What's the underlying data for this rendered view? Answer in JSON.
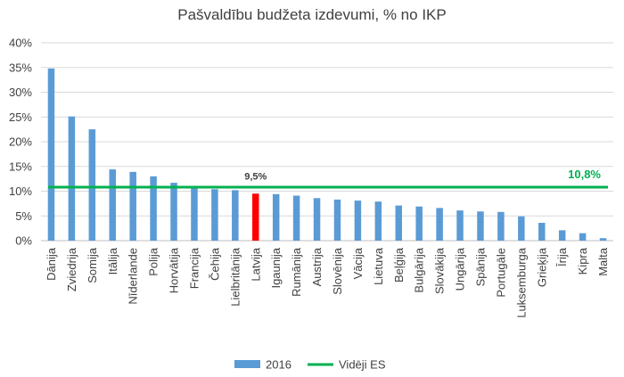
{
  "chart_data": {
    "type": "bar",
    "title": "Pašvaldību budžeta izdevumi, % no IKP",
    "categories": [
      "Dānija",
      "Zviedrija",
      "Somija",
      "Itālija",
      "Nīderlande",
      "Polija",
      "Horvātija",
      "Francija",
      "Čehija",
      "Lielbritānija",
      "Latvija",
      "Igaunija",
      "Rumānija",
      "Austrija",
      "Slovēnija",
      "Vācija",
      "Lietuva",
      "Beļģija",
      "Bulgārija",
      "Slovākija",
      "Ungārija",
      "Spānija",
      "Portugāle",
      "Luksemburga",
      "Grieķija",
      "Īrija",
      "Kipra",
      "Malta"
    ],
    "series": [
      {
        "name": "2016",
        "values": [
          34.8,
          25.1,
          22.5,
          14.4,
          13.9,
          13.0,
          11.7,
          11.0,
          10.4,
          10.2,
          9.5,
          9.4,
          9.1,
          8.6,
          8.3,
          8.1,
          7.9,
          7.1,
          6.9,
          6.6,
          6.1,
          5.9,
          5.8,
          4.9,
          3.6,
          2.1,
          1.5,
          0.5
        ],
        "color": "#5b9bd5",
        "highlight": {
          "category": "Latvija",
          "color": "#ff0000",
          "label": "9,5%"
        }
      }
    ],
    "average": {
      "name": "Vidēji ES",
      "value": 10.8,
      "label": "10,8%",
      "color": "#00b050"
    },
    "yticks": [
      "0%",
      "5%",
      "10%",
      "15%",
      "20%",
      "25%",
      "30%",
      "35%",
      "40%"
    ],
    "ylim": [
      0,
      40
    ],
    "grid": true,
    "legend": "bottom"
  }
}
